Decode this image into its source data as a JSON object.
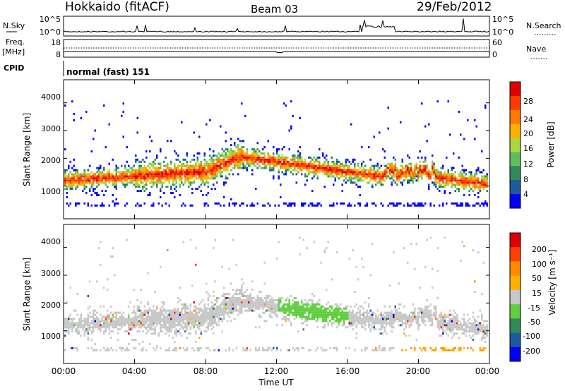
{
  "header": {
    "station": "Hokkaido (fitACF)",
    "beam": "Beam 03",
    "date": "29/Feb/2012"
  },
  "noise_panel": {
    "left_label": "N.Sky",
    "left_ticks": [
      "10^5",
      "10^0"
    ],
    "right_label": "N.Search",
    "right_ticks": [
      "10^5",
      "10^0"
    ]
  },
  "freq_panel": {
    "left_label_top": "Freq.",
    "left_label_unit": "[MHz]",
    "left_ticks": [
      "18",
      "8"
    ],
    "right_label": "Nave",
    "right_ticks": [
      "60",
      "0"
    ]
  },
  "cpid_panel": {
    "label": "CPID",
    "text": "normal (fast) 151"
  },
  "colors": {
    "power_scale": [
      "#0000ff",
      "#1e5aa0",
      "#2e8b57",
      "#5fbf5f",
      "#a8d83c",
      "#ffb000",
      "#ff7a00",
      "#ff3c00",
      "#e00000"
    ],
    "velocity_scale": [
      "#0000ff",
      "#1e5aa0",
      "#2e8b57",
      "#5fcf3f",
      "#c8c8c8",
      "#ffb000",
      "#ff8c00",
      "#ff4000",
      "#e00000"
    ]
  },
  "chart_data": [
    {
      "type": "heatmap",
      "name": "power",
      "xlabel": "",
      "ylabel": "Slant Range [km]",
      "y_ticks": [
        "1000",
        "2000",
        "3000",
        "4000"
      ],
      "colorbar_label": "Power [dB]",
      "colorbar_ticks": [
        "4",
        "8",
        "12",
        "16",
        "20",
        "24",
        "28"
      ]
    },
    {
      "type": "heatmap",
      "name": "velocity",
      "xlabel": "Time UT",
      "ylabel": "Slant Range [km]",
      "y_ticks": [
        "1000",
        "2000",
        "3000",
        "4000"
      ],
      "x_ticks": [
        "00:00",
        "04:00",
        "08:00",
        "12:00",
        "16:00",
        "20:00",
        "00:00"
      ],
      "colorbar_label": "Velocity [m s⁻¹]",
      "colorbar_ticks": [
        "200",
        "100",
        "50",
        "15",
        "-15",
        "-50",
        "-100",
        "-200"
      ]
    }
  ]
}
